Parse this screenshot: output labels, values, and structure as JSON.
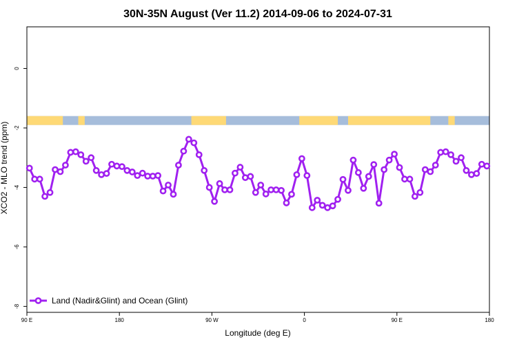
{
  "chart_data": {
    "type": "line",
    "title": "30N-35N August (Ver 11.2)   2014-09-06 to 2024-07-31",
    "xlabel": "Longitude (deg E)",
    "ylabel": "XCO2 - MLO trend (ppm)",
    "xlim": [
      -90,
      270
    ],
    "ylim": [
      -8.2,
      1.4
    ],
    "x_ticks": [
      {
        "value": -90,
        "label": "90 E"
      },
      {
        "value": -18,
        "label": "180"
      },
      {
        "value": 54,
        "label": "90 W"
      },
      {
        "value": 126,
        "label": "0"
      },
      {
        "value": 198,
        "label": "90 E"
      },
      {
        "value": 270,
        "label": "180"
      }
    ],
    "y_ticks": [
      0,
      -2,
      -4,
      -6,
      -8
    ],
    "legend_position": "bottom-left",
    "series": [
      {
        "name": "Land (Nadir&Glint) and Ocean (Glint)",
        "color": "#a020f0",
        "x": [
          -88,
          -84,
          -80,
          -76,
          -72,
          -68,
          -64,
          -60,
          -56,
          -52,
          -48,
          -44,
          -40,
          -36,
          -32,
          -28,
          -24,
          -20,
          -16,
          -12,
          -8,
          -4,
          0,
          4,
          8,
          12,
          16,
          20,
          24,
          28,
          32,
          36,
          40,
          44,
          48,
          52,
          56,
          60,
          64,
          68,
          72,
          76,
          80,
          84,
          88,
          92,
          96,
          100,
          104,
          108,
          112,
          116,
          120,
          124,
          128,
          132,
          136,
          140,
          144,
          148,
          152,
          156,
          160,
          164,
          168,
          172,
          176,
          180,
          184,
          188,
          192,
          196,
          200,
          204,
          208,
          212,
          216,
          220,
          224,
          228,
          232,
          236,
          240,
          244,
          248,
          252,
          256,
          260,
          264,
          268
        ],
        "y": [
          -3.35,
          -3.72,
          -3.72,
          -4.3,
          -4.17,
          -3.4,
          -3.47,
          -3.25,
          -2.82,
          -2.8,
          -2.9,
          -3.12,
          -3.0,
          -3.43,
          -3.57,
          -3.53,
          -3.22,
          -3.28,
          -3.3,
          -3.43,
          -3.48,
          -3.6,
          -3.52,
          -3.62,
          -3.62,
          -3.6,
          -4.12,
          -3.92,
          -4.23,
          -3.25,
          -2.78,
          -2.38,
          -2.5,
          -2.9,
          -3.43,
          -4.0,
          -4.47,
          -3.87,
          -4.08,
          -4.08,
          -3.52,
          -3.32,
          -3.67,
          -3.63,
          -4.17,
          -3.92,
          -4.22,
          -4.08,
          -4.08,
          -4.1,
          -4.52,
          -4.23,
          -3.57,
          -3.03,
          -3.6,
          -4.68,
          -4.43,
          -4.6,
          -4.68,
          -4.62,
          -4.4,
          -3.73,
          -4.1,
          -3.08,
          -3.5,
          -4.03,
          -3.63,
          -3.23,
          -4.53,
          -3.4,
          -3.08,
          -2.88,
          -3.33,
          -3.72,
          -3.72,
          -4.3,
          -4.17,
          -3.4,
          -3.47,
          -3.25,
          -2.82,
          -2.8,
          -2.9,
          -3.12,
          -3.0,
          -3.43,
          -3.57,
          -3.53,
          -3.22,
          -3.28
        ]
      }
    ],
    "land_ocean_band": {
      "y_range": [
        -1.6,
        -1.9
      ],
      "ocean_color": "#a6bddb",
      "land_color": "#fed976",
      "land_segments": [
        [
          -90,
          -62
        ],
        [
          -50,
          -45
        ],
        [
          38,
          65
        ],
        [
          122,
          152
        ],
        [
          160,
          224
        ],
        [
          238,
          243
        ]
      ]
    }
  }
}
